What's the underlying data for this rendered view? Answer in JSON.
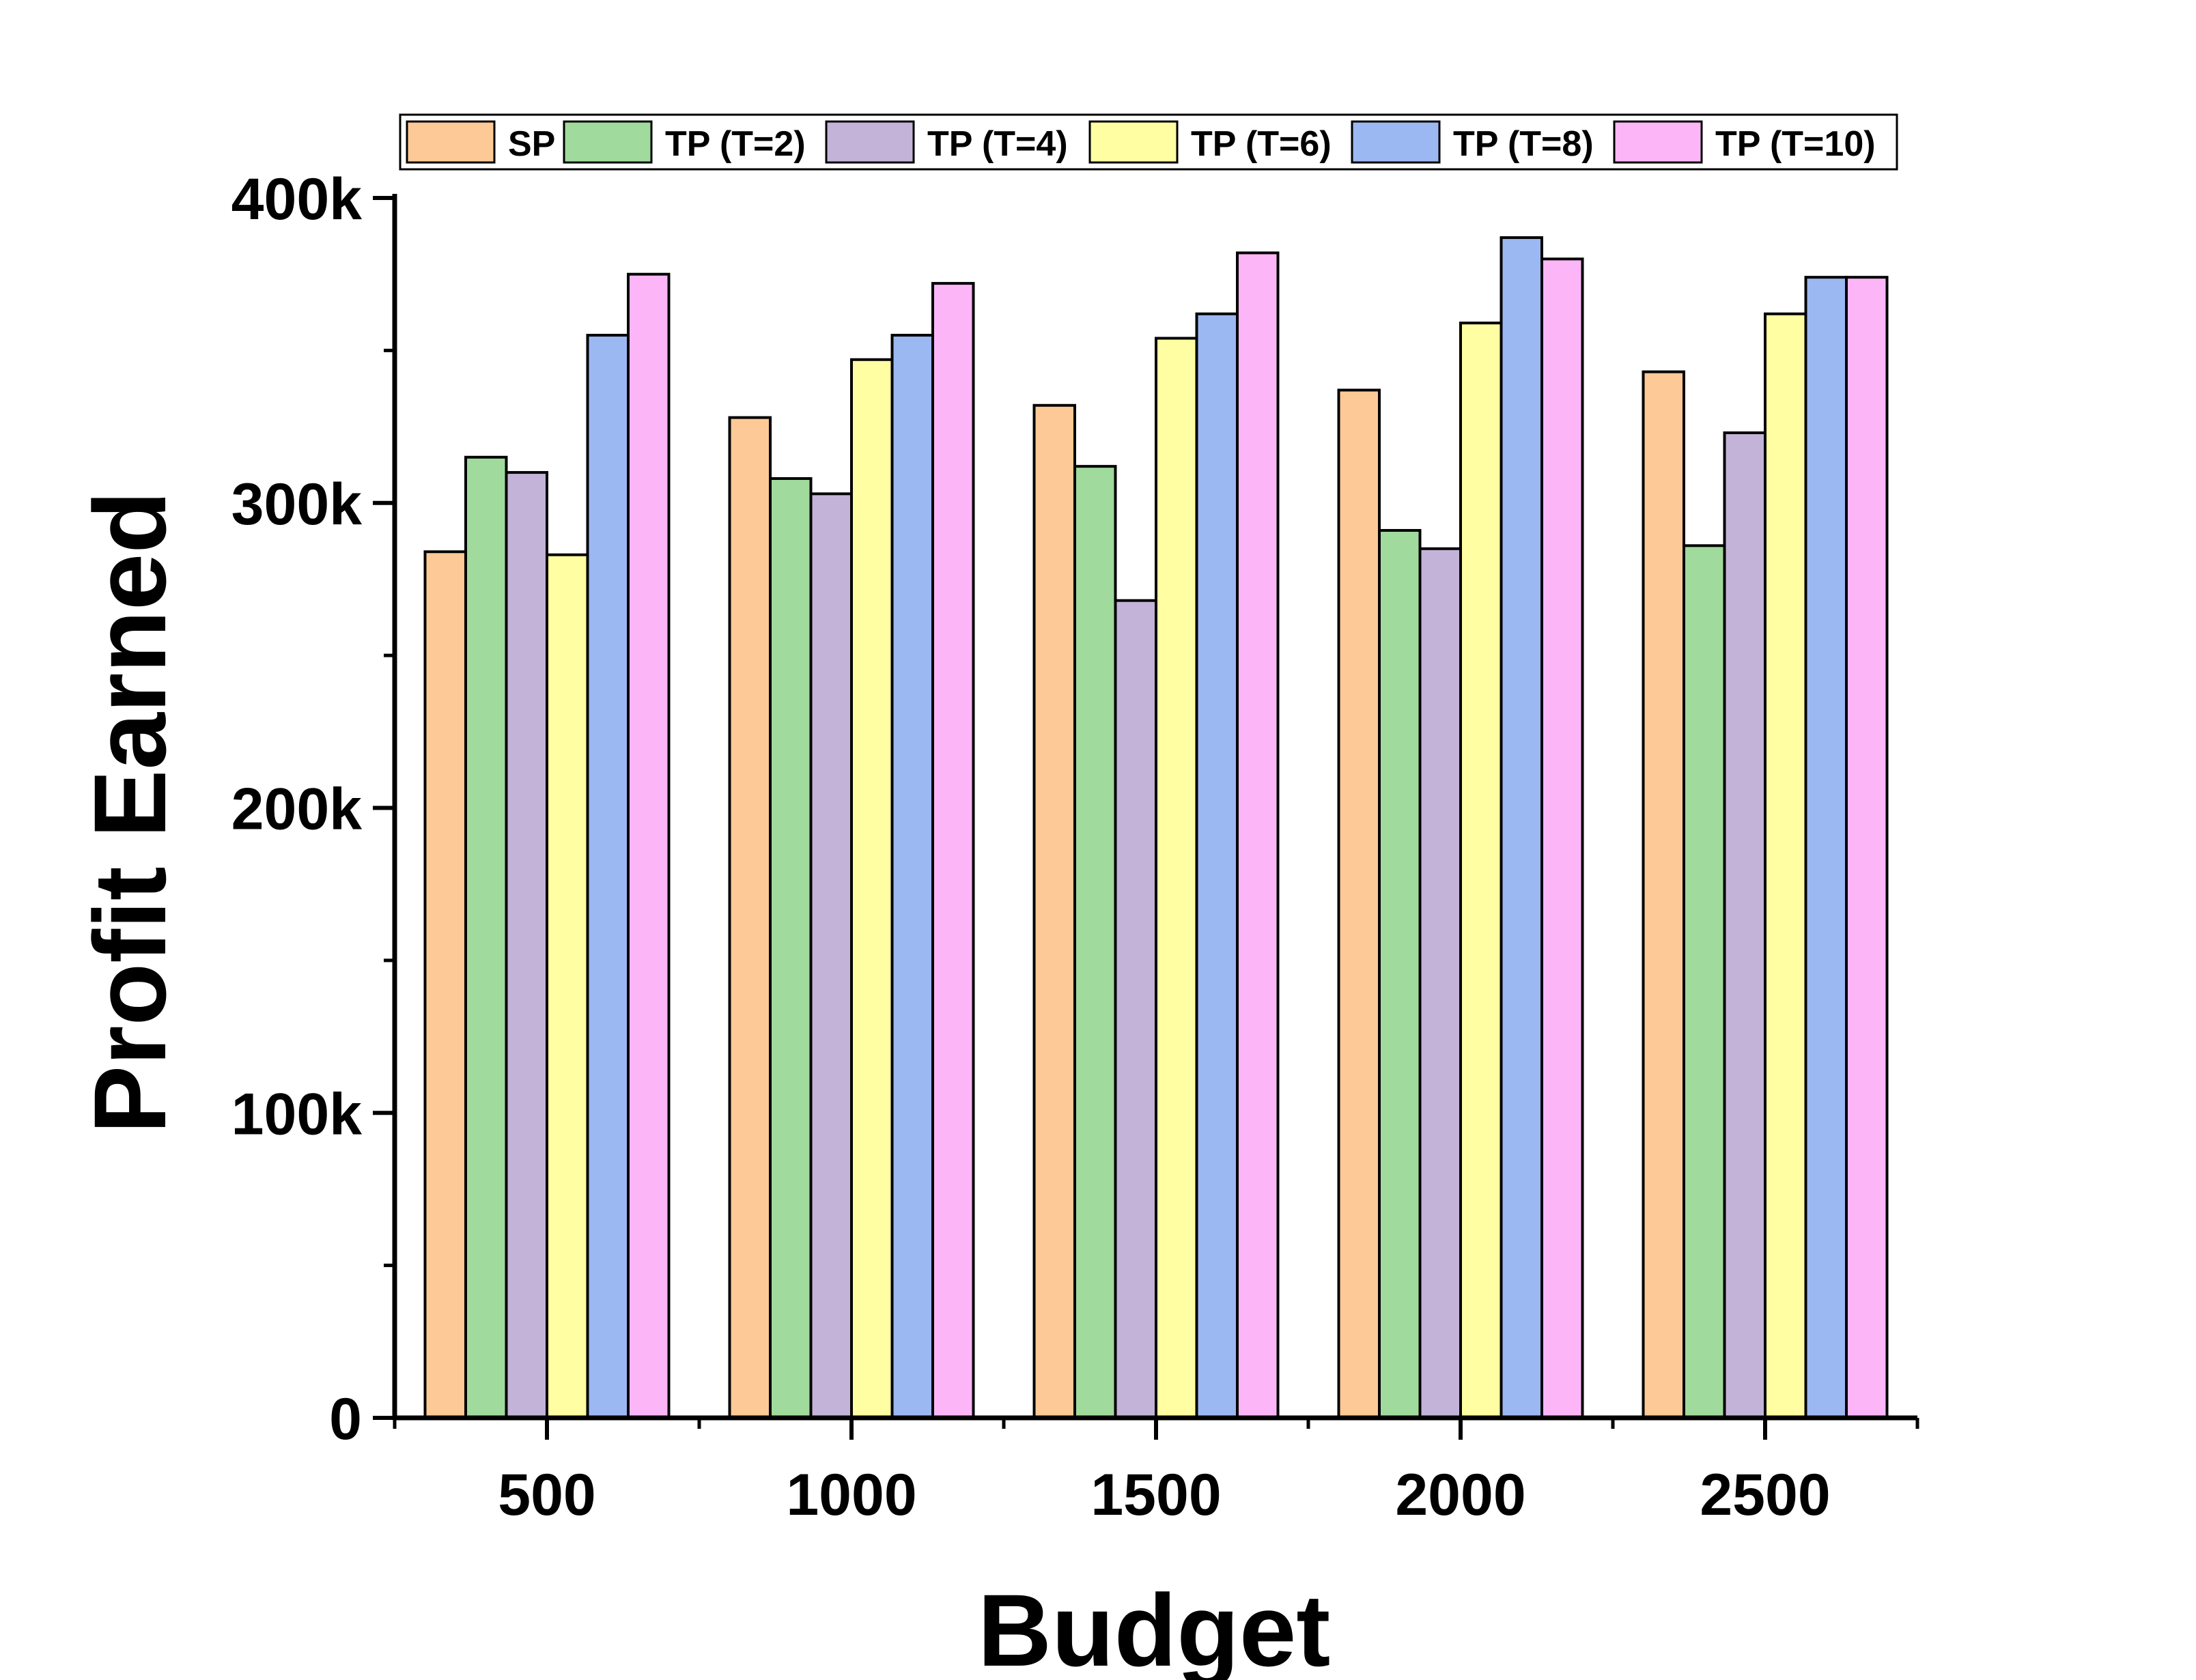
{
  "chart_data": {
    "type": "bar",
    "title": "",
    "xlabel": "Budget",
    "ylabel": "Profit Earned",
    "categories": [
      "500",
      "1000",
      "1500",
      "2000",
      "2500"
    ],
    "ylim": [
      0,
      400000
    ],
    "yticks": [
      0,
      100000,
      200000,
      300000,
      400000
    ],
    "ytick_labels": [
      "0",
      "100k",
      "200k",
      "300k",
      "400k"
    ],
    "legend_position": "top",
    "grid": false,
    "series": [
      {
        "name": "SP",
        "color": "#FDC996",
        "values": [
          284000,
          328000,
          332000,
          337000,
          343000
        ]
      },
      {
        "name": "TP (T=2)",
        "color": "#A0DA9C",
        "values": [
          315000,
          308000,
          312000,
          291000,
          286000
        ]
      },
      {
        "name": "TP (T=4)",
        "color": "#C4B3D8",
        "values": [
          310000,
          303000,
          268000,
          285000,
          323000
        ]
      },
      {
        "name": "TP (T=6)",
        "color": "#FFFEA2",
        "values": [
          283000,
          347000,
          354000,
          359000,
          362000
        ]
      },
      {
        "name": "TP (T=8)",
        "color": "#9CB8F2",
        "values": [
          355000,
          355000,
          362000,
          387000,
          374000
        ]
      },
      {
        "name": "TP (T=10)",
        "color": "#FCB6F8",
        "values": [
          375000,
          372000,
          382000,
          380000,
          374000
        ]
      }
    ]
  }
}
